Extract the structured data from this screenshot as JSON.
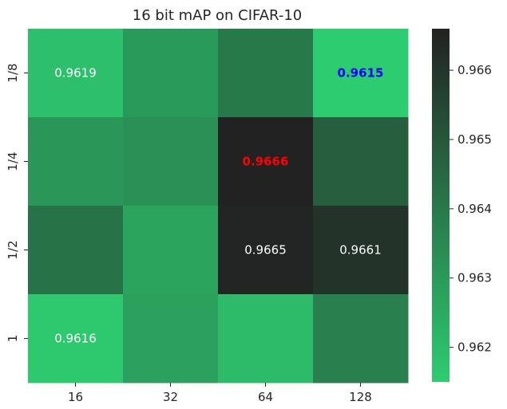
{
  "chart_data": {
    "type": "heatmap",
    "title": "16 bit mAP on CIFAR-10",
    "xlabel": "",
    "ylabel": "",
    "x_categories": [
      "16",
      "32",
      "64",
      "128"
    ],
    "y_categories": [
      "1/8",
      "1/4",
      "1/2",
      "1"
    ],
    "values": [
      [
        0.9619,
        0.963,
        0.964,
        0.9615
      ],
      [
        0.9631,
        0.9633,
        0.9666,
        0.9648
      ],
      [
        0.9642,
        0.9627,
        0.9665,
        0.9661
      ],
      [
        0.9616,
        0.9628,
        0.962,
        0.9638
      ]
    ],
    "annotations": [
      {
        "row": 0,
        "col": 0,
        "text": "0.9619",
        "color": "#ffffff",
        "bold": false
      },
      {
        "row": 0,
        "col": 3,
        "text": "0.9615",
        "color": "#0000ff",
        "bold": true
      },
      {
        "row": 1,
        "col": 2,
        "text": "0.9666",
        "color": "#ff0000",
        "bold": true
      },
      {
        "row": 2,
        "col": 2,
        "text": "0.9665",
        "color": "#ffffff",
        "bold": false
      },
      {
        "row": 2,
        "col": 3,
        "text": "0.9661",
        "color": "#ffffff",
        "bold": false
      },
      {
        "row": 3,
        "col": 0,
        "text": "0.9616",
        "color": "#ffffff",
        "bold": false
      }
    ],
    "colorbar": {
      "range": [
        0.9615,
        0.9666
      ],
      "ticks": [
        0.962,
        0.963,
        0.964,
        0.965,
        0.966
      ],
      "tick_labels": [
        "0.962",
        "0.963",
        "0.964",
        "0.965",
        "0.966"
      ],
      "color_low": "#2ecc71",
      "color_high": "#222222"
    }
  }
}
